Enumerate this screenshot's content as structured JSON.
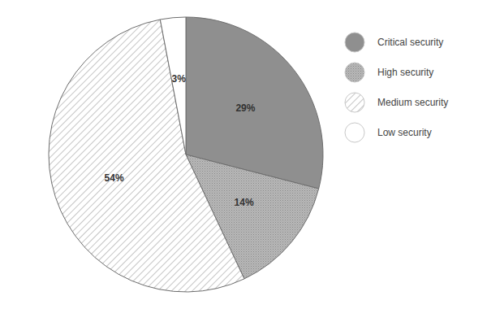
{
  "chart_data": {
    "type": "pie",
    "categories": [
      "Critical security",
      "High security",
      "Medium security",
      "Low security"
    ],
    "values": [
      29,
      14,
      54,
      3
    ],
    "value_labels": [
      "29%",
      "14%",
      "54%",
      "3%"
    ],
    "colors": [
      "#8f8f8f",
      "#b8b8b8",
      "#ffffff",
      "#ffffff"
    ],
    "data_labels": true,
    "legend": "right"
  }
}
